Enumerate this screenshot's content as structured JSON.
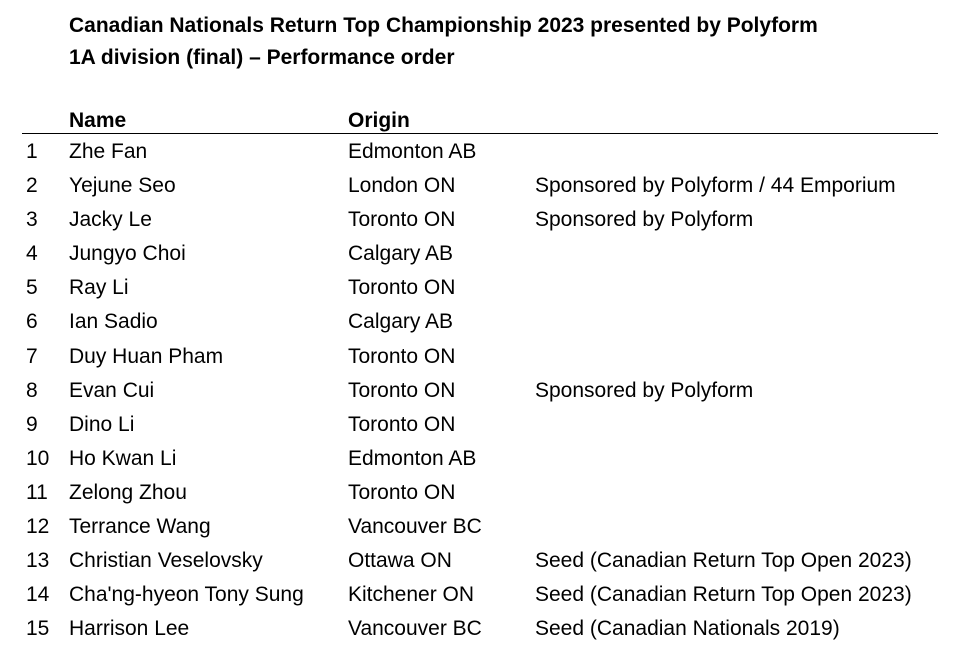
{
  "title": {
    "line1": "Canadian Nationals Return Top Championship 2023 presented by Polyform",
    "line2": "1A division (final) – Performance order"
  },
  "table": {
    "headers": {
      "name": "Name",
      "origin": "Origin"
    },
    "rows": [
      {
        "num": "1",
        "name": "Zhe Fan",
        "origin": "Edmonton AB",
        "note": ""
      },
      {
        "num": "2",
        "name": "Yejune Seo",
        "origin": "London ON",
        "note": "Sponsored by Polyform / 44 Emporium"
      },
      {
        "num": "3",
        "name": "Jacky Le",
        "origin": "Toronto ON",
        "note": "Sponsored by Polyform"
      },
      {
        "num": "4",
        "name": "Jungyo Choi",
        "origin": "Calgary AB",
        "note": ""
      },
      {
        "num": "5",
        "name": "Ray Li",
        "origin": "Toronto ON",
        "note": ""
      },
      {
        "num": "6",
        "name": "Ian Sadio",
        "origin": "Calgary AB",
        "note": ""
      },
      {
        "num": "7",
        "name": "Duy Huan Pham",
        "origin": "Toronto ON",
        "note": ""
      },
      {
        "num": "8",
        "name": "Evan Cui",
        "origin": "Toronto ON",
        "note": "Sponsored by Polyform"
      },
      {
        "num": "9",
        "name": "Dino Li",
        "origin": "Toronto ON",
        "note": ""
      },
      {
        "num": "10",
        "name": "Ho Kwan Li",
        "origin": "Edmonton AB",
        "note": ""
      },
      {
        "num": "11",
        "name": "Zelong Zhou",
        "origin": "Toronto ON",
        "note": ""
      },
      {
        "num": "12",
        "name": "Terrance Wang",
        "origin": "Vancouver BC",
        "note": ""
      },
      {
        "num": "13",
        "name": "Christian Veselovsky",
        "origin": "Ottawa ON",
        "note": "Seed (Canadian Return Top Open 2023)"
      },
      {
        "num": "14",
        "name": "Cha'ng-hyeon Tony Sung",
        "origin": "Kitchener ON",
        "note": "Seed (Canadian Return Top Open 2023)"
      },
      {
        "num": "15",
        "name": "Harrison Lee",
        "origin": "Vancouver BC",
        "note": "Seed (Canadian Nationals 2019)"
      }
    ]
  }
}
